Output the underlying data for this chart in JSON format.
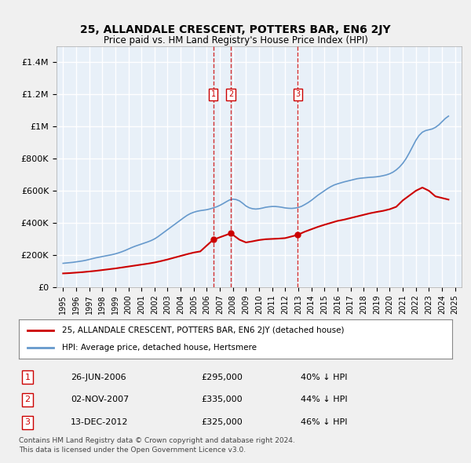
{
  "title": "25, ALLANDALE CRESCENT, POTTERS BAR, EN6 2JY",
  "subtitle": "Price paid vs. HM Land Registry's House Price Index (HPI)",
  "legend_label_red": "25, ALLANDALE CRESCENT, POTTERS BAR, EN6 2JY (detached house)",
  "legend_label_blue": "HPI: Average price, detached house, Hertsmere",
  "footer1": "Contains HM Land Registry data © Crown copyright and database right 2024.",
  "footer2": "This data is licensed under the Open Government Licence v3.0.",
  "transactions": [
    {
      "label": "1",
      "date": "26-JUN-2006",
      "price": "£295,000",
      "hpi": "40% ↓ HPI",
      "year": 2006.49
    },
    {
      "label": "2",
      "date": "02-NOV-2007",
      "price": "£335,000",
      "hpi": "44% ↓ HPI",
      "year": 2007.84
    },
    {
      "label": "3",
      "date": "13-DEC-2012",
      "price": "£325,000",
      "hpi": "46% ↓ HPI",
      "year": 2012.95
    }
  ],
  "transaction_prices": [
    295000,
    335000,
    325000
  ],
  "ylim": [
    0,
    1500000
  ],
  "yticks": [
    0,
    200000,
    400000,
    600000,
    800000,
    1000000,
    1200000,
    1400000
  ],
  "ytick_labels": [
    "£0",
    "£200K",
    "£400K",
    "£600K",
    "£800K",
    "£1M",
    "£1.2M",
    "£1.4M"
  ],
  "xlim_start": 1994.5,
  "xlim_end": 2025.5,
  "background_color": "#dce9f5",
  "plot_bg_color": "#e8f0f8",
  "grid_color": "#ffffff",
  "red_color": "#cc0000",
  "blue_color": "#6699cc",
  "hpi_years": [
    1995,
    1995.25,
    1995.5,
    1995.75,
    1996,
    1996.25,
    1996.5,
    1996.75,
    1997,
    1997.25,
    1997.5,
    1997.75,
    1998,
    1998.25,
    1998.5,
    1998.75,
    1999,
    1999.25,
    1999.5,
    1999.75,
    2000,
    2000.25,
    2000.5,
    2000.75,
    2001,
    2001.25,
    2001.5,
    2001.75,
    2002,
    2002.25,
    2002.5,
    2002.75,
    2003,
    2003.25,
    2003.5,
    2003.75,
    2004,
    2004.25,
    2004.5,
    2004.75,
    2005,
    2005.25,
    2005.5,
    2005.75,
    2006,
    2006.25,
    2006.5,
    2006.75,
    2007,
    2007.25,
    2007.5,
    2007.75,
    2008,
    2008.25,
    2008.5,
    2008.75,
    2009,
    2009.25,
    2009.5,
    2009.75,
    2010,
    2010.25,
    2010.5,
    2010.75,
    2011,
    2011.25,
    2011.5,
    2011.75,
    2012,
    2012.25,
    2012.5,
    2012.75,
    2013,
    2013.25,
    2013.5,
    2013.75,
    2014,
    2014.25,
    2014.5,
    2014.75,
    2015,
    2015.25,
    2015.5,
    2015.75,
    2016,
    2016.25,
    2016.5,
    2016.75,
    2017,
    2017.25,
    2017.5,
    2017.75,
    2018,
    2018.25,
    2018.5,
    2018.75,
    2019,
    2019.25,
    2019.5,
    2019.75,
    2020,
    2020.25,
    2020.5,
    2020.75,
    2021,
    2021.25,
    2021.5,
    2021.75,
    2022,
    2022.25,
    2022.5,
    2022.75,
    2023,
    2023.25,
    2023.5,
    2023.75,
    2024,
    2024.25,
    2024.5
  ],
  "hpi_values": [
    148000,
    150000,
    152000,
    154000,
    157000,
    160000,
    163000,
    167000,
    172000,
    177000,
    182000,
    186000,
    190000,
    194000,
    198000,
    202000,
    207000,
    213000,
    220000,
    228000,
    237000,
    246000,
    254000,
    261000,
    268000,
    275000,
    282000,
    290000,
    300000,
    313000,
    328000,
    343000,
    358000,
    373000,
    388000,
    403000,
    418000,
    433000,
    447000,
    458000,
    466000,
    472000,
    476000,
    479000,
    482000,
    487000,
    493000,
    500000,
    509000,
    520000,
    532000,
    543000,
    548000,
    545000,
    537000,
    522000,
    505000,
    494000,
    488000,
    486000,
    488000,
    492000,
    497000,
    500000,
    502000,
    502000,
    500000,
    497000,
    493000,
    491000,
    490000,
    492000,
    496000,
    503000,
    514000,
    526000,
    540000,
    556000,
    572000,
    586000,
    600000,
    614000,
    626000,
    636000,
    643000,
    649000,
    655000,
    660000,
    665000,
    670000,
    675000,
    678000,
    680000,
    682000,
    684000,
    685000,
    687000,
    690000,
    694000,
    699000,
    706000,
    716000,
    730000,
    748000,
    771000,
    800000,
    836000,
    875000,
    914000,
    945000,
    965000,
    975000,
    980000,
    985000,
    995000,
    1010000,
    1030000,
    1050000,
    1065000
  ],
  "red_years": [
    1995,
    1995.5,
    1996,
    1996.5,
    1997,
    1997.5,
    1998,
    1998.5,
    1999,
    1999.5,
    2000,
    2000.5,
    2001,
    2001.5,
    2002,
    2002.5,
    2003,
    2003.5,
    2004,
    2004.5,
    2005,
    2005.5,
    2006.49,
    2007.84,
    2008.5,
    2009,
    2009.5,
    2010,
    2010.5,
    2011,
    2011.5,
    2012,
    2012.95,
    2013.5,
    2014,
    2014.5,
    2015,
    2015.5,
    2016,
    2016.5,
    2017,
    2017.5,
    2018,
    2018.5,
    2019,
    2019.5,
    2020,
    2020.5,
    2021,
    2021.5,
    2022,
    2022.5,
    2023,
    2023.5,
    2024,
    2024.5
  ],
  "red_values": [
    85000,
    87000,
    90000,
    93000,
    97000,
    101000,
    106000,
    111000,
    116000,
    122000,
    128000,
    134000,
    140000,
    146000,
    153000,
    162000,
    172000,
    183000,
    194000,
    205000,
    215000,
    222000,
    295000,
    335000,
    295000,
    278000,
    285000,
    293000,
    298000,
    300000,
    302000,
    305000,
    325000,
    345000,
    360000,
    375000,
    388000,
    400000,
    412000,
    420000,
    430000,
    440000,
    450000,
    460000,
    468000,
    475000,
    485000,
    500000,
    540000,
    570000,
    600000,
    620000,
    600000,
    565000,
    555000,
    545000
  ]
}
